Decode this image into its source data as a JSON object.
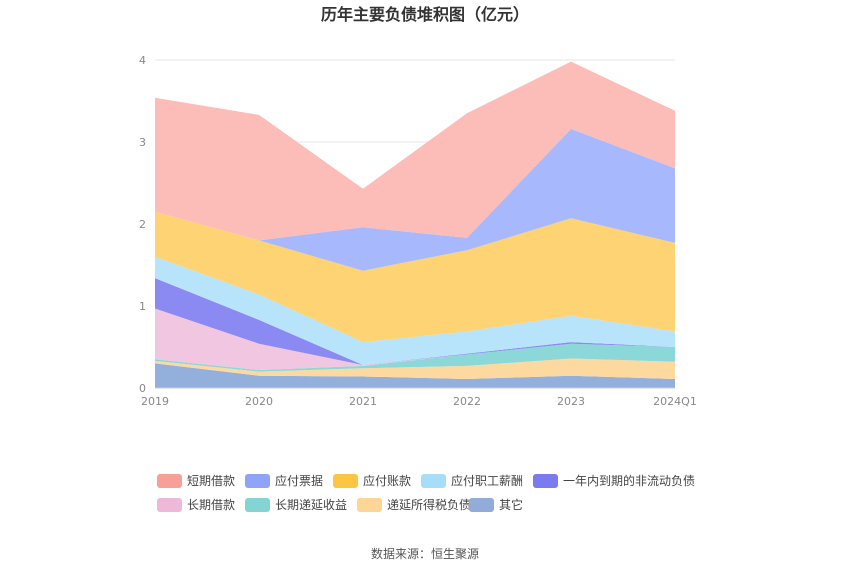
{
  "chart_data": {
    "type": "area",
    "title": "历年主要负债堆积图（亿元）",
    "source": "数据来源：恒生聚源",
    "categories": [
      "2019",
      "2020",
      "2021",
      "2022",
      "2023",
      "2024Q1"
    ],
    "ylim": [
      0,
      4
    ],
    "yticks": [
      "0",
      "1",
      "2",
      "3",
      "4"
    ],
    "grid": true,
    "legend_position": "bottom",
    "stacked": true,
    "series": [
      {
        "name": "其它",
        "color": "#93b0dc",
        "values": [
          0.3,
          0.15,
          0.14,
          0.11,
          0.15,
          0.11
        ]
      },
      {
        "name": "递延所得税负债",
        "color": "#fdd9a0",
        "values": [
          0.03,
          0.05,
          0.1,
          0.16,
          0.21,
          0.21
        ]
      },
      {
        "name": "长期递延收益",
        "color": "#8cd8d8",
        "values": [
          0.02,
          0.02,
          0.03,
          0.14,
          0.18,
          0.18
        ]
      },
      {
        "name": "长期借款",
        "color": "#f0c6e0",
        "values": [
          0.62,
          0.32,
          0.01,
          0.0,
          0.0,
          0.0
        ]
      },
      {
        "name": "一年内到期的非流动负债",
        "color": "#8a8af2",
        "values": [
          0.37,
          0.29,
          0.0,
          0.01,
          0.02,
          0.0
        ]
      },
      {
        "name": "应付职工薪酬",
        "color": "#b7e3fb",
        "values": [
          0.26,
          0.31,
          0.28,
          0.27,
          0.32,
          0.19
        ]
      },
      {
        "name": "应付账款",
        "color": "#fed373",
        "values": [
          0.55,
          0.66,
          0.87,
          0.99,
          1.19,
          1.08
        ]
      },
      {
        "name": "应付票据",
        "color": "#a7b9fc",
        "values": [
          0.0,
          0.0,
          0.53,
          0.15,
          1.09,
          0.91
        ]
      },
      {
        "name": "短期借款",
        "color": "#fcbcb7",
        "values": [
          1.39,
          1.53,
          0.47,
          1.52,
          0.82,
          0.7
        ]
      }
    ],
    "legend_order": [
      "短期借款",
      "应付票据",
      "应付账款",
      "应付职工薪酬",
      "一年内到期的非流动负债",
      "长期借款",
      "长期递延收益",
      "递延所得税负债",
      "其它"
    ],
    "legend_colors": {
      "短期借款": "#f7a097",
      "应付票据": "#8fa4f8",
      "应付账款": "#fec544",
      "应付职工薪酬": "#a6ddf9",
      "一年内到期的非流动负债": "#7b7bf0",
      "长期借款": "#eeb8d8",
      "长期递延收益": "#85d4d4",
      "递延所得税负债": "#fdd597",
      "其它": "#91acd9"
    }
  }
}
